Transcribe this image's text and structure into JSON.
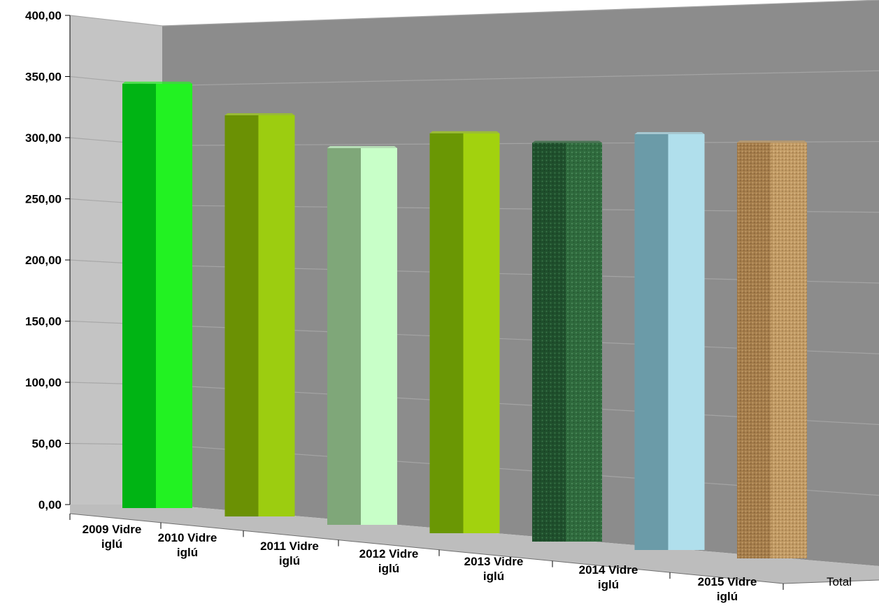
{
  "chart_data": {
    "type": "bar",
    "categories": [
      [
        "2009 Vidre",
        "iglú"
      ],
      [
        "2010 Vidre",
        "iglú"
      ],
      [
        "2011 Vidre",
        "iglú"
      ],
      [
        "2012 Vidre",
        "iglú"
      ],
      [
        "2013 Vidre",
        "iglú"
      ],
      [
        "2014 Vidre",
        "iglú"
      ],
      [
        "2015 Vidre",
        "iglú"
      ]
    ],
    "values": [
      347,
      328,
      308,
      327,
      326,
      340,
      340
    ],
    "axis_end_label": "Total",
    "yticks": [
      "0,00",
      "50,00",
      "100,00",
      "150,00",
      "200,00",
      "250,00",
      "300,00",
      "350,00",
      "400,00"
    ],
    "ylim": [
      0,
      400
    ],
    "grid": true,
    "legend": "none",
    "colors": [
      {
        "front": "#00b414",
        "side": "#22f222"
      },
      {
        "front": "#6b9104",
        "side": "#9ccd10"
      },
      {
        "front": "#7fa779",
        "side": "#c8ffc8"
      },
      {
        "front": "#6a9704",
        "side": "#a2d20e"
      },
      {
        "front": "#1f4f2c",
        "side": "#2f6a3d"
      },
      {
        "front": "#6b9ba8",
        "side": "#b0dfec"
      },
      {
        "front": "#a57d4b",
        "side": "#c19a64"
      }
    ]
  }
}
